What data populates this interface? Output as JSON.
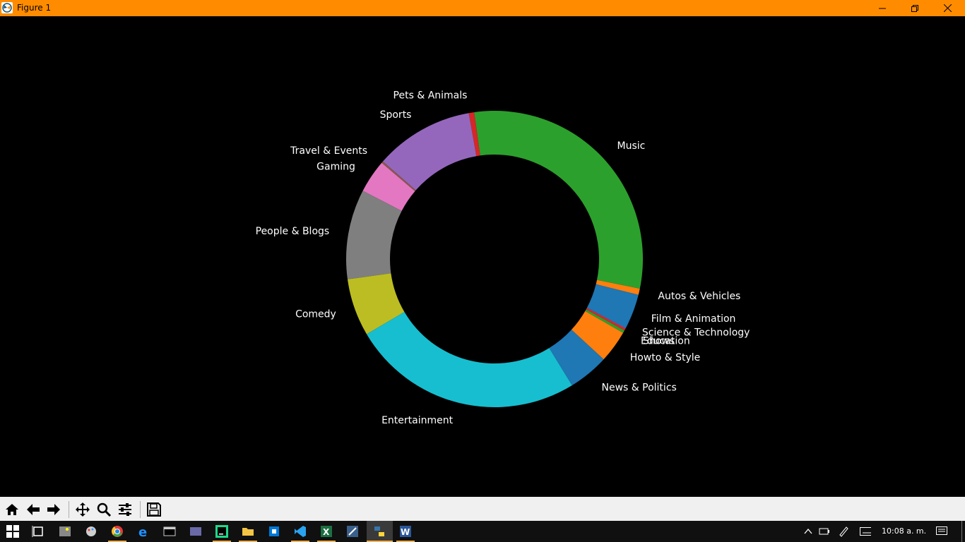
{
  "window": {
    "title": "Figure 1"
  },
  "chart_data": {
    "type": "pie",
    "style": "donut",
    "background": "#000000",
    "label_color": "#ffffff",
    "start_angle_deg": -14,
    "direction": "counterclockwise",
    "slices": [
      {
        "label": "Autos & Vehicles",
        "value": 0.7,
        "color": "#ff7f0e"
      },
      {
        "label": "Music",
        "value": 31.0,
        "color": "#2ca02c"
      },
      {
        "label": "Pets & Animals",
        "value": 0.6,
        "color": "#d62728"
      },
      {
        "label": "Sports",
        "value": 11.0,
        "color": "#9467bd"
      },
      {
        "label": "Travel & Events",
        "value": 0.2,
        "color": "#8c564b"
      },
      {
        "label": "Gaming",
        "value": 3.7,
        "color": "#e377c2"
      },
      {
        "label": "People & Blogs",
        "value": 10.0,
        "color": "#7f7f7f"
      },
      {
        "label": "Comedy",
        "value": 6.4,
        "color": "#bcbd22"
      },
      {
        "label": "Entertainment",
        "value": 25.8,
        "color": "#17becf"
      },
      {
        "label": "News & Politics",
        "value": 4.5,
        "color": "#1f77b4"
      },
      {
        "label": "Howto & Style",
        "value": 3.6,
        "color": "#ff7f0e"
      },
      {
        "label": "Education",
        "value": 0.3,
        "color": "#2ca02c"
      },
      {
        "label": "Science & Technology",
        "value": 0.25,
        "color": "#d62728"
      },
      {
        "label": "Shows",
        "value": 0.05,
        "color": "#9467bd"
      },
      {
        "label": "Film & Animation",
        "value": 3.9,
        "color": "#1f77b4"
      }
    ]
  },
  "toolbar": {
    "buttons": [
      "home-icon",
      "back-icon",
      "forward-icon",
      "pan-icon",
      "zoom-icon",
      "configure-subplots-icon",
      "save-icon"
    ]
  },
  "taskbar": {
    "clock": "10:08 a. m."
  }
}
